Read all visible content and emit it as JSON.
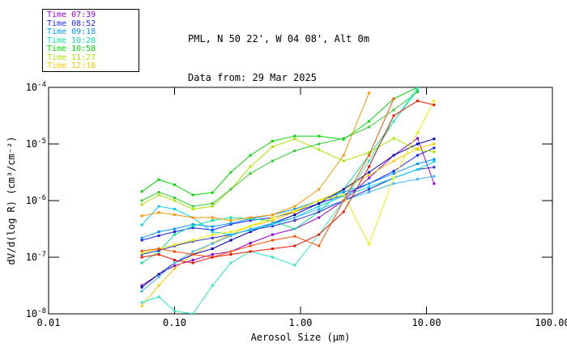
{
  "header": {
    "title": "PML, N 50 22', W 04 08', Alt 0m",
    "subtitle": "Data from: 29 Mar 2025"
  },
  "legend": {
    "items": [
      {
        "label": "Time 07:39",
        "color": "#9400D3"
      },
      {
        "label": "Time 08:52",
        "color": "#1E1EFF"
      },
      {
        "label": "Time 09:18",
        "color": "#0096FF"
      },
      {
        "label": "Time 10:28",
        "color": "#00E896"
      },
      {
        "label": "Time 10:58",
        "color": "#00DC00"
      },
      {
        "label": "Time 11:27",
        "color": "#AAE600"
      },
      {
        "label": "Time 12:18",
        "color": "#FFC800"
      }
    ]
  },
  "chart_data": {
    "type": "line",
    "title": "PML, N 50 22', W 04 08', Alt 0m",
    "subtitle": "Data from: 29 Mar 2025",
    "xlabel": "Aerosol Size (µm)",
    "ylabel": "dV/d(log R) (cm³/cm⁻²)",
    "x_scale": "log",
    "y_scale": "log",
    "xlim": [
      0.01,
      100.0
    ],
    "ylim": [
      1e-08,
      0.0001
    ],
    "x_tick_labels": [
      "0.01",
      "0.10",
      "1.00",
      "10.00",
      "100.00"
    ],
    "y_tick_exponents": [
      -4,
      -5,
      -6,
      -7,
      -8
    ],
    "grid": false,
    "legend_position": "top-left",
    "marker": "square",
    "y_units": "points are [aerosol size in um, log10 of dV/d(log R)]",
    "series": [
      {
        "name": "Time 07:39",
        "color": "#9400D3",
        "points": [
          [
            0.055,
            -7.5
          ],
          [
            0.075,
            -7.3
          ],
          [
            0.1,
            -7.15
          ],
          [
            0.14,
            -7.05
          ],
          [
            0.2,
            -6.95
          ],
          [
            0.28,
            -6.9
          ],
          [
            0.4,
            -6.75
          ],
          [
            0.6,
            -6.6
          ],
          [
            0.9,
            -6.5
          ],
          [
            1.4,
            -6.3
          ],
          [
            2.2,
            -6.0
          ],
          [
            3.5,
            -5.6
          ],
          [
            5.5,
            -5.2
          ],
          [
            8.5,
            -4.9
          ],
          [
            11.5,
            -5.7
          ]
        ]
      },
      {
        "name": "Time 08:52",
        "color": "#1E1EFF",
        "points": [
          [
            0.055,
            -6.7
          ],
          [
            0.075,
            -6.62
          ],
          [
            0.1,
            -6.55
          ],
          [
            0.14,
            -6.48
          ],
          [
            0.2,
            -6.52
          ],
          [
            0.28,
            -6.42
          ],
          [
            0.4,
            -6.35
          ],
          [
            0.6,
            -6.3
          ],
          [
            0.9,
            -6.2
          ],
          [
            1.4,
            -6.05
          ],
          [
            2.2,
            -5.9
          ],
          [
            3.5,
            -5.7
          ],
          [
            5.5,
            -5.48
          ],
          [
            8.5,
            -5.2
          ],
          [
            11.5,
            -5.07
          ]
        ]
      },
      {
        "name": "Time 09:18",
        "color": "#0096FF",
        "points": [
          [
            0.055,
            -6.66
          ],
          [
            0.075,
            -6.55
          ],
          [
            0.1,
            -6.5
          ],
          [
            0.14,
            -6.42
          ],
          [
            0.2,
            -6.46
          ],
          [
            0.28,
            -6.4
          ],
          [
            0.4,
            -6.32
          ],
          [
            0.6,
            -6.25
          ],
          [
            0.9,
            -6.15
          ],
          [
            1.4,
            -6.0
          ],
          [
            2.2,
            -5.85
          ],
          [
            3.5,
            -5.7
          ],
          [
            5.5,
            -5.52
          ],
          [
            8.5,
            -5.35
          ],
          [
            11.5,
            -5.27
          ]
        ]
      },
      {
        "name": "Time 10:28",
        "color": "#00E896",
        "points": [
          [
            0.055,
            -7.1
          ],
          [
            0.075,
            -6.9
          ],
          [
            0.1,
            -6.6
          ],
          [
            0.14,
            -6.45
          ],
          [
            0.2,
            -6.35
          ],
          [
            0.28,
            -6.3
          ],
          [
            0.4,
            -6.32
          ],
          [
            0.6,
            -6.36
          ],
          [
            0.9,
            -6.5
          ],
          [
            1.4,
            -6.2
          ],
          [
            2.2,
            -5.8
          ],
          [
            3.5,
            -5.2
          ],
          [
            5.5,
            -4.6
          ],
          [
            8.5,
            -4.05
          ]
        ]
      },
      {
        "name": "Time 10:58",
        "color": "#00DC00",
        "points": [
          [
            0.055,
            -5.84
          ],
          [
            0.075,
            -5.63
          ],
          [
            0.1,
            -5.72
          ],
          [
            0.14,
            -5.9
          ],
          [
            0.2,
            -5.86
          ],
          [
            0.28,
            -5.5
          ],
          [
            0.4,
            -5.2
          ],
          [
            0.6,
            -4.95
          ],
          [
            0.9,
            -4.86
          ],
          [
            1.4,
            -4.86
          ],
          [
            2.2,
            -4.92
          ],
          [
            3.5,
            -4.6
          ],
          [
            5.5,
            -4.2
          ],
          [
            8.5,
            -4.0
          ]
        ]
      },
      {
        "name": "Time 11:27",
        "color": "#AAE600",
        "points": [
          [
            0.055,
            -6.07
          ],
          [
            0.075,
            -5.9
          ],
          [
            0.1,
            -6.0
          ],
          [
            0.14,
            -6.15
          ],
          [
            0.2,
            -6.1
          ],
          [
            0.28,
            -5.8
          ],
          [
            0.4,
            -5.4
          ],
          [
            0.6,
            -5.05
          ],
          [
            0.9,
            -4.91
          ],
          [
            1.4,
            -5.1
          ],
          [
            2.2,
            -5.3
          ],
          [
            3.5,
            -5.15
          ],
          [
            5.5,
            -4.9
          ],
          [
            8.5,
            -5.1
          ],
          [
            11.5,
            -5.14
          ]
        ]
      },
      {
        "name": "Time 12:18",
        "color": "#FFC800",
        "points": [
          [
            0.055,
            -7.86
          ],
          [
            0.075,
            -7.5
          ],
          [
            0.1,
            -7.2
          ],
          [
            0.14,
            -6.95
          ],
          [
            0.2,
            -6.75
          ],
          [
            0.28,
            -6.6
          ],
          [
            0.4,
            -6.45
          ],
          [
            0.6,
            -6.35
          ],
          [
            0.9,
            -6.2
          ],
          [
            1.4,
            -6.0
          ],
          [
            2.2,
            -5.8
          ],
          [
            3.5,
            -5.55
          ],
          [
            5.5,
            -5.3
          ],
          [
            8.5,
            -5.08
          ],
          [
            11.5,
            -5.0
          ]
        ]
      },
      {
        "name": "unlabeled-green",
        "color": "#32CD32",
        "points": [
          [
            0.055,
            -6.0
          ],
          [
            0.075,
            -5.85
          ],
          [
            0.1,
            -5.95
          ],
          [
            0.14,
            -6.1
          ],
          [
            0.2,
            -6.05
          ],
          [
            0.28,
            -5.8
          ],
          [
            0.4,
            -5.52
          ],
          [
            0.6,
            -5.3
          ],
          [
            0.9,
            -5.12
          ],
          [
            1.4,
            -5.0
          ],
          [
            2.2,
            -4.9
          ],
          [
            3.5,
            -4.7
          ],
          [
            5.5,
            -4.4
          ],
          [
            8.5,
            -4.08
          ]
        ]
      },
      {
        "name": "unlabeled-navy",
        "color": "#0000B4",
        "points": [
          [
            0.055,
            -7.53
          ],
          [
            0.075,
            -7.3
          ],
          [
            0.1,
            -7.1
          ],
          [
            0.14,
            -6.95
          ],
          [
            0.2,
            -6.85
          ],
          [
            0.28,
            -6.7
          ],
          [
            0.4,
            -6.55
          ],
          [
            0.6,
            -6.4
          ],
          [
            0.9,
            -6.25
          ],
          [
            1.4,
            -6.05
          ],
          [
            2.2,
            -5.8
          ],
          [
            3.5,
            -5.5
          ],
          [
            5.5,
            -5.2
          ],
          [
            8.5,
            -5.0
          ],
          [
            11.5,
            -4.91
          ]
        ]
      },
      {
        "name": "unlabeled-darkblue",
        "color": "#3232C8",
        "points": [
          [
            0.055,
            -6.95
          ],
          [
            0.075,
            -6.88
          ],
          [
            0.1,
            -6.8
          ],
          [
            0.14,
            -6.72
          ],
          [
            0.2,
            -6.66
          ],
          [
            0.28,
            -6.6
          ],
          [
            0.4,
            -6.52
          ],
          [
            0.6,
            -6.45
          ],
          [
            0.9,
            -6.35
          ],
          [
            1.4,
            -6.2
          ],
          [
            2.2,
            -6.0
          ],
          [
            3.5,
            -5.8
          ],
          [
            5.5,
            -5.6
          ],
          [
            8.5,
            -5.45
          ],
          [
            11.5,
            -5.41
          ]
        ]
      },
      {
        "name": "unlabeled-cyan",
        "color": "#00D2FF",
        "points": [
          [
            0.055,
            -6.43
          ],
          [
            0.075,
            -6.1
          ],
          [
            0.1,
            -6.15
          ],
          [
            0.14,
            -6.3
          ],
          [
            0.2,
            -6.55
          ],
          [
            0.28,
            -6.6
          ],
          [
            0.4,
            -6.52
          ],
          [
            0.6,
            -6.42
          ],
          [
            0.9,
            -6.3
          ],
          [
            1.4,
            -6.1
          ],
          [
            2.2,
            -5.92
          ],
          [
            3.5,
            -5.76
          ],
          [
            5.5,
            -5.6
          ],
          [
            8.5,
            -5.45
          ],
          [
            11.5,
            -5.31
          ]
        ]
      },
      {
        "name": "unlabeled-skyblue",
        "color": "#41B4FF",
        "points": [
          [
            0.055,
            -7.6
          ],
          [
            0.075,
            -7.35
          ],
          [
            0.1,
            -7.1
          ],
          [
            0.14,
            -6.9
          ],
          [
            0.2,
            -6.76
          ],
          [
            0.28,
            -6.62
          ],
          [
            0.4,
            -6.5
          ],
          [
            0.6,
            -6.4
          ],
          [
            0.9,
            -6.3
          ],
          [
            1.4,
            -6.15
          ],
          [
            2.2,
            -6.0
          ],
          [
            3.5,
            -5.85
          ],
          [
            5.5,
            -5.7
          ],
          [
            8.5,
            -5.62
          ],
          [
            11.5,
            -5.57
          ]
        ]
      },
      {
        "name": "unlabeled-turquoise",
        "color": "#2DE6C8",
        "points": [
          [
            0.055,
            -7.8
          ],
          [
            0.075,
            -7.7
          ],
          [
            0.1,
            -7.95
          ],
          [
            0.14,
            -8.0
          ],
          [
            0.2,
            -7.5
          ],
          [
            0.28,
            -7.1
          ],
          [
            0.4,
            -6.9
          ],
          [
            0.6,
            -7.0
          ],
          [
            0.9,
            -7.14
          ],
          [
            1.4,
            -6.6
          ],
          [
            2.2,
            -6.0
          ],
          [
            3.5,
            -5.3
          ],
          [
            5.5,
            -4.6
          ],
          [
            8.5,
            -4.0
          ]
        ]
      },
      {
        "name": "unlabeled-yellow",
        "color": "#F0F000",
        "points": [
          [
            0.055,
            -6.93
          ],
          [
            0.075,
            -6.85
          ],
          [
            0.1,
            -6.78
          ],
          [
            0.14,
            -6.7
          ],
          [
            0.2,
            -6.6
          ],
          [
            0.28,
            -6.55
          ],
          [
            0.4,
            -6.45
          ],
          [
            0.6,
            -6.3
          ],
          [
            0.9,
            -6.18
          ],
          [
            1.4,
            -6.0
          ],
          [
            2.2,
            -5.9
          ],
          [
            3.5,
            -6.77
          ],
          [
            5.5,
            -5.6
          ],
          [
            8.5,
            -4.8
          ],
          [
            11.5,
            -4.24
          ]
        ]
      },
      {
        "name": "unlabeled-orange",
        "color": "#FF9600",
        "points": [
          [
            0.055,
            -6.27
          ],
          [
            0.075,
            -6.21
          ],
          [
            0.1,
            -6.25
          ],
          [
            0.14,
            -6.3
          ],
          [
            0.2,
            -6.3
          ],
          [
            0.28,
            -6.35
          ],
          [
            0.4,
            -6.3
          ],
          [
            0.6,
            -6.25
          ],
          [
            0.9,
            -6.1
          ],
          [
            1.4,
            -5.8
          ],
          [
            2.2,
            -5.2
          ],
          [
            3.5,
            -4.1
          ]
        ]
      },
      {
        "name": "unlabeled-orangered",
        "color": "#FF5000",
        "points": [
          [
            0.055,
            -6.89
          ],
          [
            0.075,
            -6.85
          ],
          [
            0.1,
            -6.9
          ],
          [
            0.14,
            -6.95
          ],
          [
            0.2,
            -7.0
          ],
          [
            0.28,
            -6.9
          ],
          [
            0.4,
            -6.8
          ],
          [
            0.6,
            -6.7
          ],
          [
            0.9,
            -6.63
          ],
          [
            1.4,
            -6.8
          ],
          [
            2.2,
            -6.0
          ],
          [
            3.5,
            -5.2
          ],
          [
            5.5,
            -4.2
          ]
        ]
      },
      {
        "name": "unlabeled-red",
        "color": "#E61400",
        "points": [
          [
            0.055,
            -7.0
          ],
          [
            0.075,
            -6.95
          ],
          [
            0.1,
            -7.05
          ],
          [
            0.14,
            -7.1
          ],
          [
            0.2,
            -7.0
          ],
          [
            0.28,
            -6.95
          ],
          [
            0.4,
            -6.9
          ],
          [
            0.6,
            -6.85
          ],
          [
            0.9,
            -6.8
          ],
          [
            1.4,
            -6.6
          ],
          [
            2.2,
            -6.2
          ],
          [
            3.5,
            -5.4
          ],
          [
            5.5,
            -4.5
          ],
          [
            8.5,
            -4.24
          ],
          [
            11.5,
            -4.31
          ]
        ]
      }
    ]
  }
}
